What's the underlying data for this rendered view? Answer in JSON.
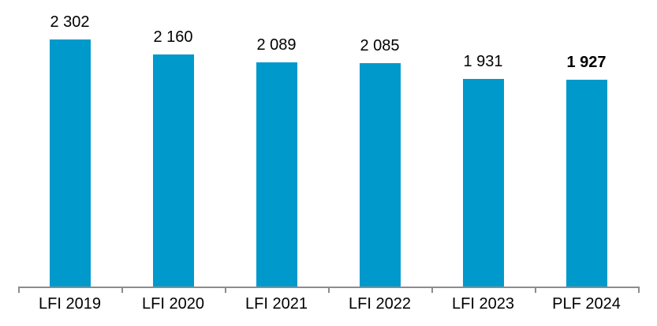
{
  "chart_data": {
    "type": "bar",
    "title": "",
    "xlabel": "",
    "ylabel": "",
    "categories": [
      "LFI 2019",
      "LFI 2020",
      "LFI 2021",
      "LFI 2022",
      "LFI 2023",
      "PLF 2024"
    ],
    "values": [
      2302,
      2160,
      2089,
      2085,
      1931,
      1927
    ],
    "value_labels": [
      "2 302",
      "2 160",
      "2 089",
      "2 085",
      "1 931",
      "1 927"
    ],
    "emphasized": [
      false,
      false,
      false,
      false,
      false,
      true
    ],
    "ylim": [
      0,
      2450
    ],
    "grid": false,
    "legend": "none",
    "colors": {
      "bar": "#0099CC",
      "axis": "#8C8C8C",
      "text": "#000000",
      "background": "#FFFFFF"
    }
  }
}
